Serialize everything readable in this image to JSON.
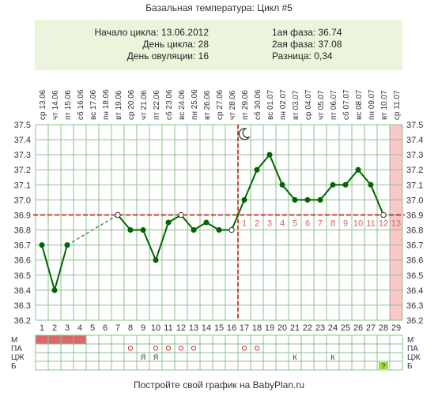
{
  "title": "Базальная температура: Цикл #5",
  "info": {
    "cycle_start": "Начало цикла: 13.06.2012",
    "cycle_day": "День цикла: 28",
    "ovulation_day": "День овуляции: 16",
    "phase1": "1ая фаза: 36.74",
    "phase2": "2ая фаза: 37.08",
    "difference": "Разница: 0,34"
  },
  "footer": "Постройте свой график на BabyPlan.ru",
  "colors": {
    "line": "#006600",
    "grid": "#8fbf8f",
    "coverline": "#cc0000",
    "ovulation": "#cc0000",
    "post_ovulation_numbers": "#cc6666",
    "today_column": "#f9c7c7",
    "menses": "#d9686a",
    "positive_test": "#99dd33"
  },
  "chart_data": {
    "type": "line",
    "title": "Базальная температура: Цикл #5",
    "days": [
      1,
      2,
      3,
      4,
      5,
      6,
      7,
      8,
      9,
      10,
      11,
      12,
      13,
      14,
      15,
      16,
      17,
      18,
      19,
      20,
      21,
      22,
      23,
      24,
      25,
      26,
      27,
      28,
      29
    ],
    "dates": [
      {
        "wd": "ср",
        "d": "13.06"
      },
      {
        "wd": "чт",
        "d": "14.06"
      },
      {
        "wd": "пт",
        "d": "15.06"
      },
      {
        "wd": "сб",
        "d": "16.06"
      },
      {
        "wd": "вс",
        "d": "17.06"
      },
      {
        "wd": "пн",
        "d": "18.06"
      },
      {
        "wd": "вт",
        "d": "19.06"
      },
      {
        "wd": "ср",
        "d": "20.06"
      },
      {
        "wd": "чт",
        "d": "21.06"
      },
      {
        "wd": "пт",
        "d": "22.06"
      },
      {
        "wd": "сб",
        "d": "23.06"
      },
      {
        "wd": "вс",
        "d": "24.06"
      },
      {
        "wd": "пн",
        "d": "25.06"
      },
      {
        "wd": "вт",
        "d": "26.06"
      },
      {
        "wd": "ср",
        "d": "27.06"
      },
      {
        "wd": "чт",
        "d": "28.06"
      },
      {
        "wd": "пт",
        "d": "29.06"
      },
      {
        "wd": "сб",
        "d": "30.06"
      },
      {
        "wd": "вс",
        "d": "01.07"
      },
      {
        "wd": "пн",
        "d": "02.07"
      },
      {
        "wd": "вт",
        "d": "03.07"
      },
      {
        "wd": "ср",
        "d": "04.07"
      },
      {
        "wd": "чт",
        "d": "05.07"
      },
      {
        "wd": "пт",
        "d": "06.07"
      },
      {
        "wd": "сб",
        "d": "07.07"
      },
      {
        "wd": "вс",
        "d": "08.07"
      },
      {
        "wd": "пн",
        "d": "09.07"
      },
      {
        "wd": "вт",
        "d": "10.07"
      },
      {
        "wd": "ср",
        "d": "11.07"
      }
    ],
    "temperatures": [
      36.7,
      36.4,
      36.7,
      null,
      null,
      null,
      36.9,
      36.8,
      36.8,
      36.6,
      36.85,
      36.9,
      36.8,
      36.85,
      36.8,
      36.8,
      37.0,
      37.2,
      37.3,
      37.1,
      37.0,
      37.0,
      37.0,
      37.1,
      37.1,
      37.2,
      37.1,
      36.9,
      null
    ],
    "open_markers_days": [
      7,
      12,
      16,
      28
    ],
    "dashed_gap": [
      3,
      7
    ],
    "yticks": [
      "36.2",
      "36.3",
      "36.4",
      "36.5",
      "36.6",
      "36.7",
      "36.8",
      "36.9",
      "37.0",
      "37.1",
      "37.2",
      "37.3",
      "37.4",
      "37.5"
    ],
    "ylim": [
      36.2,
      37.5
    ],
    "coverline": 36.9,
    "ovulation_day": 16,
    "today_day": 29,
    "post_ovulation_labels": [
      "1",
      "2",
      "3",
      "4",
      "5",
      "6",
      "7",
      "8",
      "9",
      "10",
      "11",
      "12",
      "13"
    ],
    "moon_day": 17,
    "row_labels": [
      "М",
      "ПА",
      "ЦЖ",
      "Б"
    ],
    "menses_days": [
      1,
      2,
      3,
      4
    ],
    "pa_circle_days": [
      8,
      10,
      11,
      12,
      13,
      17,
      18
    ],
    "czh_marks": [
      {
        "day": 9,
        "text": "Я"
      },
      {
        "day": 10,
        "text": "Я"
      },
      {
        "day": 21,
        "text": "К"
      },
      {
        "day": 24,
        "text": "К"
      }
    ],
    "b_marks": [
      {
        "day": 28,
        "text": "?"
      }
    ]
  }
}
